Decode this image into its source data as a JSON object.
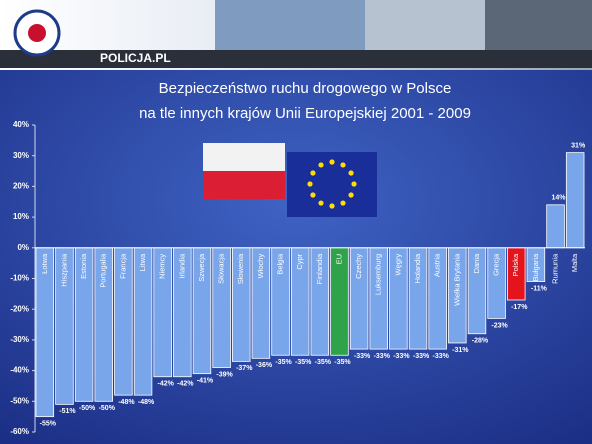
{
  "header": {
    "site": "POLICJA.PL"
  },
  "chart_data": {
    "type": "bar",
    "title": "Bezpieczeństwo ruchu drogowego w Polsce",
    "subtitle": "na tle innych krajów Unii Europejskiej 2001 - 2009",
    "categories": [
      "Łotwa",
      "Hiszpania",
      "Estonia",
      "Portugalia",
      "Francja",
      "Litwa",
      "Niemcy",
      "Irlandia",
      "Szwecja",
      "Słowacja",
      "Słowenia",
      "Włochy",
      "Belgia",
      "Cypr",
      "Finlandia",
      "EU",
      "Czechy",
      "Luksemburg",
      "Węgry",
      "Holandia",
      "Austria",
      "Wielka Brytania",
      "Dania",
      "Grecja",
      "Polska",
      "Bułgaria",
      "Rumunia",
      "Malta"
    ],
    "values": [
      -55,
      -51,
      -50,
      -50,
      -48,
      -48,
      -42,
      -42,
      -41,
      -39,
      -37,
      -36,
      -35,
      -35,
      -35,
      -35,
      -33,
      -33,
      -33,
      -33,
      -33,
      -31,
      -28,
      -23,
      -17,
      -11,
      14,
      31
    ],
    "value_labels": [
      "-55%",
      "-51%",
      "-50%",
      "-50%",
      "-48%",
      "-48%",
      "-42%",
      "-42%",
      "-41%",
      "-39%",
      "-37%",
      "-36%",
      "-35%",
      "-35%",
      "-35%",
      "-35%",
      "-33%",
      "-33%",
      "-33%",
      "-33%",
      "-33%",
      "-31%",
      "-28%",
      "-23%",
      "-17%",
      "-11%",
      "14%",
      "31%"
    ],
    "colors": [
      "#79a5ea",
      "#79a5ea",
      "#79a5ea",
      "#79a5ea",
      "#79a5ea",
      "#79a5ea",
      "#79a5ea",
      "#79a5ea",
      "#79a5ea",
      "#79a5ea",
      "#79a5ea",
      "#79a5ea",
      "#79a5ea",
      "#79a5ea",
      "#79a5ea",
      "#2ea34a",
      "#79a5ea",
      "#79a5ea",
      "#79a5ea",
      "#79a5ea",
      "#79a5ea",
      "#79a5ea",
      "#79a5ea",
      "#79a5ea",
      "#e3141c",
      "#79a5ea",
      "#79a5ea",
      "#79a5ea"
    ],
    "ylim": [
      -60,
      40
    ],
    "yticks": [
      {
        "value": 40,
        "label": "40%"
      },
      {
        "value": 30,
        "label": "30%"
      },
      {
        "value": 20,
        "label": "20%"
      },
      {
        "value": 10,
        "label": "10%"
      },
      {
        "value": 0,
        "label": "0%"
      },
      {
        "value": -10,
        "label": "-10%"
      },
      {
        "value": -20,
        "label": "-20%"
      },
      {
        "value": -30,
        "label": "-30%"
      },
      {
        "value": -40,
        "label": "-40%"
      },
      {
        "value": -50,
        "label": "-50%"
      },
      {
        "value": -60,
        "label": "-60%"
      }
    ],
    "grid": false
  }
}
